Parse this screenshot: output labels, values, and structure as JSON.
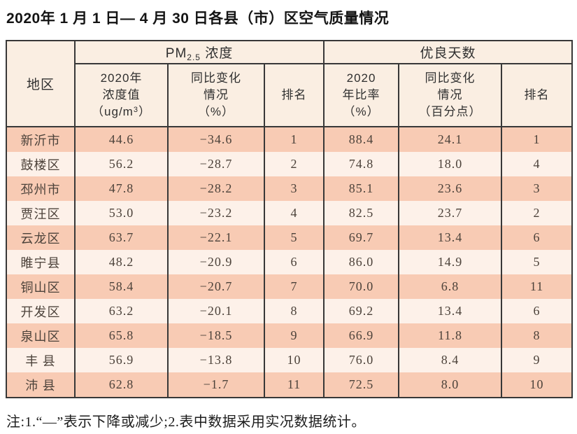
{
  "page": {
    "title": "2020年 1 月 1 日— 4 月 30 日各县（市）区空气质量情况",
    "note": "注:1.“—”表示下降或减少;2.表中数据采用实况数据统计。"
  },
  "table": {
    "colors": {
      "row_odd_bg": "#f8cbb4",
      "row_even_bg": "#fdf1e9",
      "header_bg": "#faeee2",
      "border": "#383838"
    },
    "header": {
      "region": "地区",
      "pm25_group": {
        "base": "PM",
        "sub": "2.5",
        "rest": " 浓度"
      },
      "good_days_group": "优良天数",
      "pm_value": {
        "line1": "2020年",
        "line2": "浓度值",
        "unit_pre": "（ug/m",
        "unit_sup": "3",
        "unit_post": "）"
      },
      "pm_change": {
        "line1": "同比变化",
        "line2": "情况",
        "line3": "（%）"
      },
      "pm_rank": "排名",
      "ratio": {
        "line1": "2020",
        "line2": "年比率",
        "line3": "（%）"
      },
      "ratio_change": {
        "line1": "同比变化",
        "line2": "情况",
        "line3": "（百分点）"
      },
      "ratio_rank": "排名"
    },
    "field_order": [
      "region",
      "pm_value",
      "pm_change",
      "pm_rank",
      "ratio",
      "ratio_change",
      "ratio_rank"
    ],
    "rows": [
      {
        "region": "新沂市",
        "pm_value": "44.6",
        "pm_change": "−34.6",
        "pm_rank": "1",
        "ratio": "88.4",
        "ratio_change": "24.1",
        "ratio_rank": "1"
      },
      {
        "region": "鼓楼区",
        "pm_value": "56.2",
        "pm_change": "−28.7",
        "pm_rank": "2",
        "ratio": "74.8",
        "ratio_change": "18.0",
        "ratio_rank": "4"
      },
      {
        "region": "邳州市",
        "pm_value": "47.8",
        "pm_change": "−28.2",
        "pm_rank": "3",
        "ratio": "85.1",
        "ratio_change": "23.6",
        "ratio_rank": "3"
      },
      {
        "region": "贾汪区",
        "pm_value": "53.0",
        "pm_change": "−23.2",
        "pm_rank": "4",
        "ratio": "82.5",
        "ratio_change": "23.7",
        "ratio_rank": "2"
      },
      {
        "region": "云龙区",
        "pm_value": "63.7",
        "pm_change": "−22.1",
        "pm_rank": "5",
        "ratio": "69.7",
        "ratio_change": "13.4",
        "ratio_rank": "6"
      },
      {
        "region": "睢宁县",
        "pm_value": "48.2",
        "pm_change": "−20.9",
        "pm_rank": "6",
        "ratio": "86.0",
        "ratio_change": "14.9",
        "ratio_rank": "5"
      },
      {
        "region": "铜山区",
        "pm_value": "58.4",
        "pm_change": "−20.7",
        "pm_rank": "7",
        "ratio": "70.0",
        "ratio_change": "6.8",
        "ratio_rank": "11"
      },
      {
        "region": "开发区",
        "pm_value": "63.2",
        "pm_change": "−20.1",
        "pm_rank": "8",
        "ratio": "69.2",
        "ratio_change": "13.4",
        "ratio_rank": "6"
      },
      {
        "region": "泉山区",
        "pm_value": "65.8",
        "pm_change": "−18.5",
        "pm_rank": "9",
        "ratio": "66.9",
        "ratio_change": "11.8",
        "ratio_rank": "8"
      },
      {
        "region": "丰 县",
        "pm_value": "56.9",
        "pm_change": "−13.8",
        "pm_rank": "10",
        "ratio": "76.0",
        "ratio_change": "8.4",
        "ratio_rank": "9"
      },
      {
        "region": "沛 县",
        "pm_value": "62.8",
        "pm_change": "−1.7",
        "pm_rank": "11",
        "ratio": "72.5",
        "ratio_change": "8.0",
        "ratio_rank": "10"
      }
    ]
  }
}
